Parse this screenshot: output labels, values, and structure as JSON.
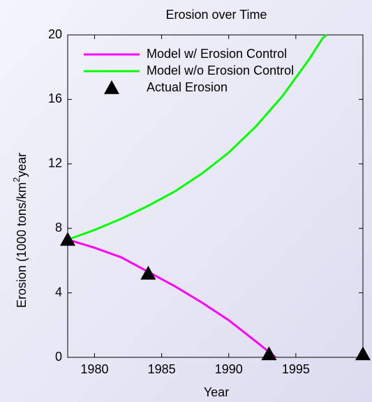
{
  "chart_data": {
    "type": "line",
    "title": "Erosion over Time",
    "xlabel": "Year",
    "ylabel": [
      "Erosion (1000 tons/km",
      "2",
      "year"
    ],
    "xlim": [
      1978,
      2000
    ],
    "xticks": [
      1980,
      1985,
      1990,
      1995
    ],
    "ylim": [
      0,
      20
    ],
    "yticks": [
      0,
      4,
      8,
      12,
      16,
      20
    ],
    "series": [
      {
        "name": "Model w/ Erosion Control",
        "color": "#ff00ff",
        "kind": "line",
        "x": [
          1978,
          1980,
          1982,
          1984,
          1986,
          1988,
          1990,
          1992,
          1993.5
        ],
        "values": [
          7.3,
          6.8,
          6.2,
          5.3,
          4.4,
          3.4,
          2.3,
          1.0,
          0
        ]
      },
      {
        "name": "Model w/o Erosion Control",
        "color": "#00ff00",
        "kind": "line",
        "x": [
          1978,
          1980,
          1982,
          1984,
          1986,
          1988,
          1990,
          1992,
          1994,
          1996,
          1997,
          1997.3
        ],
        "values": [
          7.3,
          7.9,
          8.6,
          9.4,
          10.3,
          11.4,
          12.7,
          14.3,
          16.2,
          18.5,
          19.8,
          20
        ]
      },
      {
        "name": "Actual Erosion",
        "color": "#000000",
        "kind": "marker",
        "x": [
          1978,
          1984,
          1993,
          2000
        ],
        "values": [
          7.3,
          5.2,
          0.2,
          0.2
        ]
      }
    ]
  }
}
